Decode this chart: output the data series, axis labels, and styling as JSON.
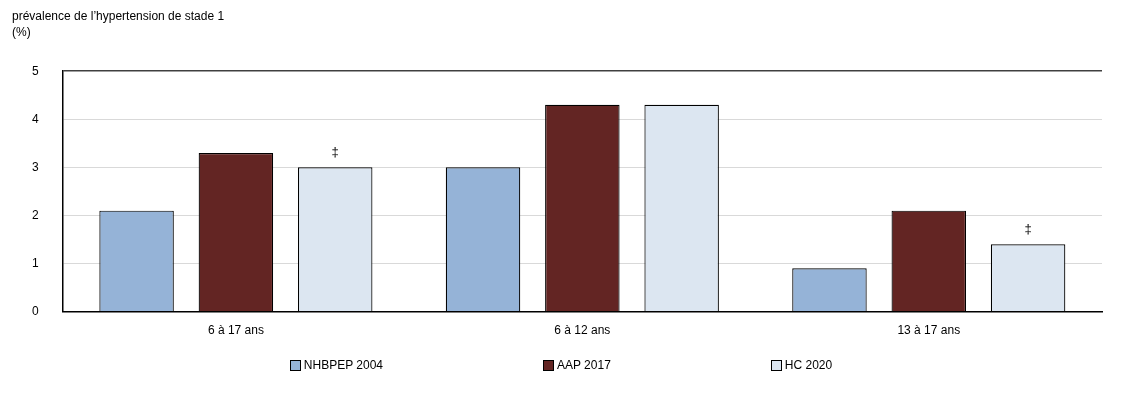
{
  "chart_data": {
    "type": "bar",
    "ylabel": "prévalence de l’hypertension de stade 1 (%)",
    "categories": [
      "6 à 17 ans",
      "6 à 12 ans",
      "13 à 17 ans"
    ],
    "series": [
      {
        "name": "NHBPEP 2004",
        "color": "#95b3d7",
        "values": [
          2.1,
          3.0,
          0.9
        ]
      },
      {
        "name": "AAP 2017",
        "color": "#632523",
        "values": [
          3.3,
          4.3,
          2.1
        ]
      },
      {
        "name": "HC 2020",
        "color": "#dce6f1",
        "values": [
          3.0,
          4.3,
          1.4
        ]
      }
    ],
    "ylim": [
      0,
      5
    ],
    "yticks": [
      0,
      1,
      2,
      3,
      4,
      5
    ],
    "grid": "y",
    "legend": "bottom",
    "annotations": [
      "‡",
      "‡"
    ]
  }
}
